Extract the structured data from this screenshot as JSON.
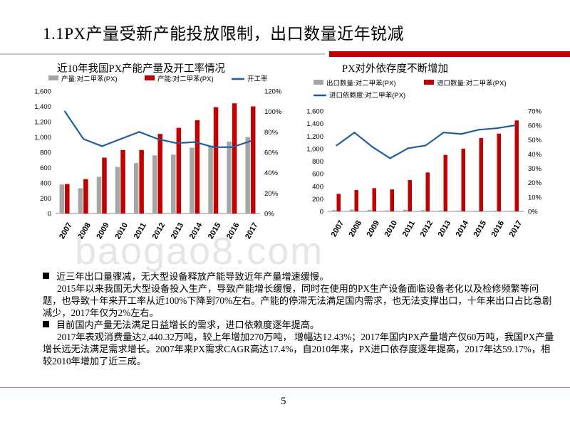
{
  "slide": {
    "title": "1.1PX产量受新产能投放限制，出口数量近年锐减",
    "watermark": "baogao8.com",
    "page_number": "5",
    "colors": {
      "accent": "#c00000",
      "gray_bar": "#a6a6a6",
      "line": "#1f5fa0"
    }
  },
  "bullets": [
    {
      "heading": "近三年出口量骤减，无大型设备释放产能导致近年产量增速缓慢。",
      "body": "2015年以来我国无大型设备投入生产，导致产能增长缓慢，同时在使用的PX生产设备面临设备老化以及检修频繁等问题，也导致十年来开工率从近100%下降到70%左右。产能的停滞无法满足国内需求，也无法支撑出口，十年来出口占比急剧减少，2017年仅为2%左右。"
    },
    {
      "heading": "目前国内产量无法满足日益增长的需求，进口依赖度逐年提高。",
      "body": "2017年表观消费量达2,440.32万吨，较上年增加270万吨， 增幅达12.43%；2017年国内PX产量增产仅60万吨，我国PX产量增长远无法满足需求增长。2007年来PX需求CAGR高达17.4%，自2010年来，PX进口依存度逐年提高，2017年达59.17%，相较2010年增加了近三成。"
    }
  ],
  "chart_data": [
    {
      "type": "bar",
      "title": "近10年我国PX产能产量及开工率情况",
      "categories": [
        "2007",
        "2008",
        "2009",
        "2010",
        "2011",
        "2012",
        "2013",
        "2014",
        "2015",
        "2016",
        "2017"
      ],
      "series": [
        {
          "name": "产量:对二甲苯(PX)",
          "type": "bar",
          "axis": "left",
          "color": "#a6a6a6",
          "values": [
            380,
            330,
            480,
            610,
            660,
            760,
            770,
            860,
            890,
            940,
            1000
          ]
        },
        {
          "name": "产能:对二甲苯(PX)",
          "type": "bar",
          "axis": "left",
          "color": "#c00000",
          "values": [
            385,
            450,
            730,
            830,
            830,
            1040,
            1120,
            1220,
            1390,
            1440,
            1400
          ]
        },
        {
          "name": "开工率",
          "type": "line",
          "axis": "right",
          "color": "#1f5fa0",
          "values": [
            100,
            73,
            66,
            73,
            80,
            73,
            69,
            70,
            65,
            65,
            71
          ]
        }
      ],
      "left_axis": {
        "min": 0,
        "max": 1600,
        "ticks": [
          "0",
          "200",
          "400",
          "600",
          "800",
          "1,000",
          "1,200",
          "1,400",
          "1,600"
        ]
      },
      "right_axis": {
        "min": 0,
        "max": 120,
        "ticks": [
          "0%",
          "20%",
          "40%",
          "60%",
          "80%",
          "100%",
          "120%"
        ]
      },
      "legend_position": "top"
    },
    {
      "type": "bar",
      "title": "PX对外依存度不断增加",
      "categories": [
        "2007",
        "2008",
        "2009",
        "2010",
        "2011",
        "2012",
        "2013",
        "2014",
        "2015",
        "2016",
        "2017"
      ],
      "series": [
        {
          "name": "出口数量:对二甲苯(PX)",
          "type": "bar",
          "axis": "left",
          "color": "#a6a6a6",
          "values": [
            20,
            30,
            25,
            15,
            25,
            20,
            15,
            12,
            10,
            10,
            10
          ]
        },
        {
          "name": "进口数量:对二甲苯(PX)",
          "type": "bar",
          "axis": "left",
          "color": "#c00000",
          "values": [
            280,
            340,
            370,
            350,
            500,
            620,
            900,
            1000,
            1170,
            1240,
            1450
          ]
        },
        {
          "name": "进口依赖度:对二甲苯(PX)",
          "type": "line",
          "axis": "right",
          "color": "#1f5fa0",
          "values": [
            46,
            55,
            45,
            37,
            44,
            46,
            55,
            54,
            57,
            58,
            60
          ]
        }
      ],
      "left_axis": {
        "min": 0,
        "max": 1600,
        "ticks": [
          "0",
          "200",
          "400",
          "600",
          "800",
          "1,000",
          "1,200",
          "1,400",
          "1,600"
        ]
      },
      "right_axis": {
        "min": 0,
        "max": 70,
        "ticks": [
          "0%",
          "10%",
          "20%",
          "30%",
          "40%",
          "50%",
          "60%",
          "70%"
        ]
      },
      "legend_position": "top"
    }
  ]
}
